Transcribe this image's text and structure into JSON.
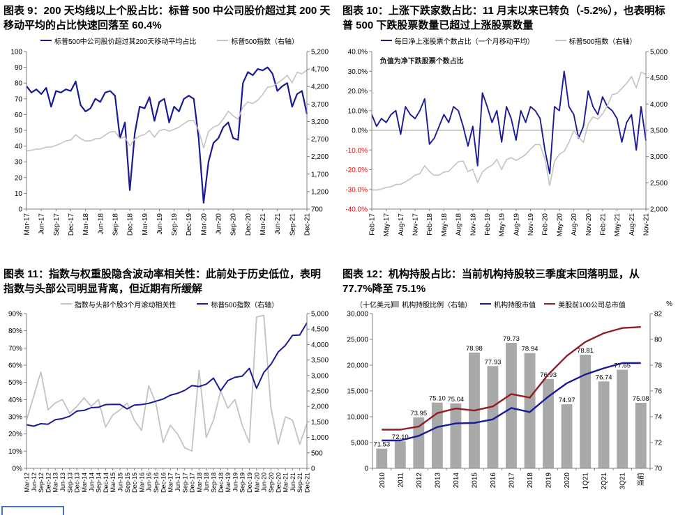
{
  "colors": {
    "navy": "#1a1a96",
    "gray": "#c3c3c3",
    "bar_gray": "#a9a9a9",
    "dark_red": "#8f1d21",
    "negative_tick": "#ff0000",
    "axis": "#808080",
    "footer_box_border": "#4472c4"
  },
  "chart_data": [
    {
      "type": "line",
      "title": "图表 9：200 天均线以上个股占比：标普 500 中公司股价超过其 200 天移动平均的占比快速回落至 60.4%",
      "legend": [
        {
          "label": "标普500中公司股价超过其200天移动平均占比",
          "swatch": "line",
          "color": "navy"
        },
        {
          "label": "标普500指数（右轴）",
          "swatch": "line",
          "color": "gray"
        }
      ],
      "left_axis": {
        "min": 0,
        "max": 100,
        "ticks": [
          "100",
          "90",
          "80",
          "70",
          "60",
          "50",
          "40",
          "30",
          "20",
          "10",
          "0"
        ]
      },
      "right_axis": {
        "min": 700,
        "max": 5200,
        "ticks": [
          "5,200",
          "4,700",
          "4,200",
          "3,700",
          "3,200",
          "2,700",
          "2,200",
          "1,700",
          "1,200",
          "700"
        ]
      },
      "x_tick_labels": [
        "Mar-17",
        "Jun-17",
        "Sep-17",
        "Dec-17",
        "Mar-18",
        "Jun-18",
        "Sep-18",
        "Dec-18",
        "Mar-19",
        "Jun-19",
        "Sep-19",
        "Dec-19",
        "Mar-20",
        "Jun-20",
        "Sep-20",
        "Dec-20",
        "Mar-21",
        "Jun-21",
        "Sep-21",
        "Dec-21"
      ],
      "series": [
        {
          "name": "标普500中公司股价超过其200天移动平均占比",
          "axis": "left",
          "color": "navy",
          "width": 2.2,
          "values": [
            78,
            74,
            76,
            73,
            77,
            65,
            75,
            74,
            76,
            75,
            81,
            66,
            62,
            64,
            70,
            68,
            74,
            75,
            72,
            45,
            55,
            12,
            48,
            65,
            64,
            71,
            56,
            68,
            70,
            55,
            65,
            62,
            70,
            72,
            70,
            45,
            4,
            30,
            42,
            45,
            52,
            55,
            45,
            44,
            80,
            87,
            85,
            89,
            88,
            90,
            86,
            75,
            78,
            80,
            65,
            73,
            75,
            60.4
          ]
        },
        {
          "name": "标普500指数（右轴）",
          "axis": "right",
          "color": "gray",
          "width": 1.6,
          "values": [
            2362,
            2384,
            2412,
            2423,
            2470,
            2472,
            2519,
            2575,
            2648,
            2674,
            2824,
            2714,
            2641,
            2648,
            2705,
            2718,
            2816,
            2902,
            2914,
            2712,
            2760,
            2507,
            2704,
            2784,
            2834,
            2946,
            2752,
            2942,
            2980,
            2926,
            2977,
            3038,
            3141,
            3231,
            3226,
            2954,
            2450,
            2912,
            3044,
            3100,
            3271,
            3500,
            3363,
            3270,
            3622,
            3756,
            3714,
            3811,
            3973,
            4181,
            4204,
            4298,
            4395,
            4523,
            4308,
            4605,
            4567,
            4670
          ]
        }
      ]
    },
    {
      "type": "line",
      "title": "图表 10：上涨下跌家数占比：11 月末以来已转负（-5.2%），也表明标普 500 下跌股票数量已超过上涨股票数量",
      "legend": [
        {
          "label": "每日净上涨股票个数占比（一个月移动平均）",
          "swatch": "line",
          "color": "navy"
        },
        {
          "label": "标普500指数（右轴）",
          "swatch": "line",
          "color": "gray"
        }
      ],
      "annotation": {
        "text": "负值为净下跌股票个数占比",
        "x_frac": 0.03,
        "value": 34
      },
      "zero_at": 0,
      "left_axis": {
        "min": -40,
        "max": 40,
        "ticks": [
          "40.0%",
          "30.0%",
          "20.0%",
          "10.0%",
          "0.0%",
          "-10.0%",
          "-20.0%",
          "-30.0%",
          "-40.0%"
        ]
      },
      "right_axis": {
        "min": 2000,
        "max": 5000,
        "ticks": [
          "5,000",
          "4,500",
          "4,000",
          "3,500",
          "3,000",
          "2,500",
          "2,000"
        ]
      },
      "x_tick_labels": [
        "Feb-17",
        "May-17",
        "Aug-17",
        "Nov-17",
        "Feb-18",
        "May-18",
        "Aug-18",
        "Nov-18",
        "Feb-19",
        "May-19",
        "Aug-19",
        "Nov-19",
        "Feb-20",
        "May-20",
        "Aug-20",
        "Nov-20",
        "Feb-21",
        "May-21",
        "Aug-21",
        "Nov-21"
      ],
      "series": [
        {
          "name": "每日净上涨股票个数占比（一个月移动平均）",
          "axis": "left",
          "color": "navy",
          "width": 1.9,
          "values": [
            8,
            2,
            6,
            4,
            8,
            10,
            -2,
            12,
            8,
            6,
            10,
            16,
            -7,
            -4,
            2,
            8,
            4,
            12,
            10,
            2,
            -8,
            2,
            -18,
            19,
            12,
            4,
            10,
            -6,
            12,
            6,
            -5,
            10,
            4,
            12,
            10,
            6,
            -10,
            -22,
            12,
            10,
            30,
            12,
            8,
            -4,
            2,
            20,
            12,
            8,
            17,
            12,
            10,
            6,
            -6,
            4,
            8,
            -10,
            12,
            -5.2
          ]
        },
        {
          "name": "标普500指数（右轴）",
          "axis": "right",
          "color": "gray",
          "width": 1.6,
          "values": [
            2364,
            2363,
            2384,
            2412,
            2423,
            2470,
            2472,
            2519,
            2575,
            2648,
            2674,
            2824,
            2714,
            2641,
            2648,
            2705,
            2718,
            2816,
            2902,
            2914,
            2712,
            2760,
            2507,
            2704,
            2784,
            2834,
            2946,
            2752,
            2942,
            2980,
            2926,
            2977,
            3038,
            3141,
            3231,
            3226,
            2954,
            2450,
            2912,
            3044,
            3100,
            3271,
            3500,
            3363,
            3270,
            3622,
            3756,
            3714,
            3811,
            3973,
            4181,
            4204,
            4298,
            4395,
            4523,
            4308,
            4605,
            4567
          ]
        }
      ]
    },
    {
      "type": "line",
      "title": "图表 11：指数与权重股隐含波动率相关性：此前处于历史低位，表明指数与头部公司明显背离，但近期有所缓解",
      "legend": [
        {
          "label": "指数与头部个股3个月滚动相关性",
          "swatch": "line",
          "color": "gray"
        },
        {
          "label": "标普500指数（右轴）",
          "swatch": "line",
          "color": "navy"
        }
      ],
      "left_axis": {
        "min": 0,
        "max": 90,
        "ticks": [
          "90%",
          "80%",
          "70%",
          "60%",
          "50%",
          "40%",
          "30%",
          "20%",
          "10%",
          "0%"
        ]
      },
      "right_axis": {
        "min": 0,
        "max": 5000,
        "ticks": [
          "5,000",
          "4,500",
          "4,000",
          "3,500",
          "3,000",
          "2,500",
          "2,000",
          "1,500",
          "1,000",
          "500",
          "0"
        ]
      },
      "x_tick_labels": [
        "Mar-12",
        "Jun-12",
        "Sep-12",
        "Dec-12",
        "Mar-13",
        "Jun-13",
        "Sep-13",
        "Dec-13",
        "Mar-14",
        "Jun-14",
        "Sep-14",
        "Dec-14",
        "Mar-15",
        "Jun-15",
        "Sep-15",
        "Dec-15",
        "Mar-16",
        "Jun-16",
        "Sep-16",
        "Dec-16",
        "Mar-17",
        "Jun-17",
        "Sep-17",
        "Dec-17",
        "Mar-18",
        "Jun-18",
        "Sep-18",
        "Dec-18",
        "Mar-19",
        "Jun-19",
        "Sep-19",
        "Dec-19",
        "Mar-20",
        "Jun-20",
        "Sep-20",
        "Dec-20",
        "Mar-21",
        "Jun-21",
        "Sep-21",
        "Dec-21"
      ],
      "series": [
        {
          "name": "指数与头部个股3个月滚动相关性",
          "axis": "left",
          "color": "gray",
          "width": 1.8,
          "values": [
            28,
            42,
            56,
            34,
            38,
            40,
            32,
            36,
            41,
            36,
            40,
            24,
            31,
            34,
            38,
            28,
            22,
            48,
            38,
            15,
            25,
            20,
            12,
            10,
            57,
            18,
            28,
            45,
            35,
            40,
            25,
            15,
            88,
            89,
            35,
            14,
            30,
            28,
            14,
            26
          ]
        },
        {
          "name": "标普500指数（右轴）",
          "axis": "right",
          "color": "navy",
          "width": 2,
          "values": [
            1408,
            1362,
            1441,
            1426,
            1569,
            1606,
            1682,
            1848,
            1872,
            1960,
            1972,
            2059,
            2068,
            2063,
            1920,
            2044,
            2060,
            2099,
            2168,
            2239,
            2363,
            2423,
            2519,
            2674,
            2641,
            2718,
            2914,
            2507,
            2834,
            2942,
            2977,
            3231,
            2585,
            3100,
            3363,
            3756,
            3973,
            4298,
            4308,
            4700
          ]
        }
      ]
    },
    {
      "type": "bar+line",
      "title": "图表 12：机构持股占比：当前机构持股较三季度末回落明显，从 77.7%降至 75.1%",
      "unit_left": "（十亿美元）",
      "unit_right": "%",
      "legend": [
        {
          "label": "机构持股比例（右轴）",
          "swatch": "bar",
          "color": "bar_gray"
        },
        {
          "label": "机构持股市值",
          "swatch": "line",
          "color": "navy"
        },
        {
          "label": "美股前100公司总市值",
          "swatch": "line",
          "color": "dark_red"
        }
      ],
      "left_axis": {
        "min": 0,
        "max": 30000,
        "ticks": [
          "30,000",
          "25,000",
          "20,000",
          "15,000",
          "10,000",
          "5,000",
          "0"
        ]
      },
      "right_axis": {
        "min": 70,
        "max": 82,
        "ticks": [
          "82",
          "80",
          "78",
          "76",
          "74",
          "72",
          "70"
        ]
      },
      "x_tick_labels": [
        "2010",
        "2011",
        "2012",
        "2013",
        "2014",
        "2015",
        "2016",
        "2017",
        "2018",
        "2019",
        "2020",
        "1Q21",
        "2Q21",
        "3Q21",
        "当前"
      ],
      "bars": {
        "name": "机构持股比例（右轴）",
        "axis": "right",
        "color": "bar_gray",
        "values": [
          71.53,
          72.1,
          73.95,
          75.1,
          75.04,
          78.98,
          77.93,
          79.73,
          78.94,
          76.93,
          74.97,
          78.81,
          76.74,
          77.65,
          75.08
        ],
        "labels": [
          "71.53",
          "72.10",
          "73.95",
          "75.10",
          "75.04",
          "78.98",
          "77.93",
          "79.73",
          "78.94",
          "76.93",
          "74.97",
          "78.81",
          "76.74",
          "77.65",
          "75.08"
        ]
      },
      "series": [
        {
          "name": "机构持股市值",
          "axis": "left",
          "color": "navy",
          "width": 2.4,
          "values": [
            5400,
            5400,
            6300,
            8000,
            8700,
            8800,
            9500,
            11700,
            10900,
            13900,
            16500,
            18200,
            19400,
            20400,
            20400
          ]
        },
        {
          "name": "美股前100公司总市值",
          "axis": "left",
          "color": "dark_red",
          "width": 2.4,
          "values": [
            7500,
            7500,
            8100,
            10700,
            11600,
            11200,
            12000,
            14400,
            13700,
            18200,
            21800,
            24500,
            26200,
            27200,
            27400
          ]
        }
      ]
    }
  ]
}
